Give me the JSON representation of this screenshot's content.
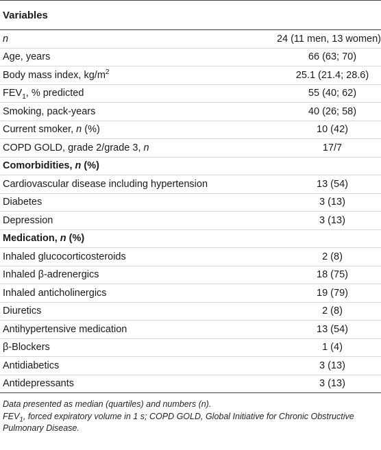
{
  "table": {
    "header": "Variables",
    "rows": [
      {
        "label": "n",
        "value": "24 (11 men, 13 women)",
        "italic_label": true
      },
      {
        "label": "Age, years",
        "value": "66 (63; 70)"
      },
      {
        "label": "Body mass index, kg/m",
        "label_sup": "2",
        "value": "25.1 (21.4; 28.6)"
      },
      {
        "label": "FEV",
        "label_sub": "1",
        "label_suffix": ", % predicted",
        "value": "55 (40; 62)"
      },
      {
        "label": "Smoking, pack-years",
        "value": "40 (26; 58)"
      },
      {
        "label": "Current smoker, ",
        "label_ital": "n",
        "label_suffix": " (%)",
        "value": "10 (42)"
      },
      {
        "label": "COPD GOLD, grade 2/grade 3, ",
        "label_ital": "n",
        "value": "17/7"
      },
      {
        "label": "Comorbidities, ",
        "label_ital": "n",
        "label_suffix": " (%)",
        "section": true,
        "value": ""
      },
      {
        "label": "Cardiovascular disease including hypertension",
        "value": "13 (54)"
      },
      {
        "label": "Diabetes",
        "value": "3 (13)"
      },
      {
        "label": "Depression",
        "value": "3 (13)"
      },
      {
        "label": "Medication, ",
        "label_ital": "n",
        "label_suffix": " (%)",
        "section": true,
        "value": ""
      },
      {
        "label": "Inhaled glucocorticosteroids",
        "value": "2 (8)"
      },
      {
        "label": "Inhaled β-adrenergics",
        "value": "18 (75)"
      },
      {
        "label": "Inhaled anticholinergics",
        "value": "19 (79)"
      },
      {
        "label": "Diuretics",
        "value": "2 (8)"
      },
      {
        "label": "Antihypertensive medication",
        "value": "13 (54)"
      },
      {
        "label": "β-Blockers",
        "value": "1 (4)"
      },
      {
        "label": "Antidiabetics",
        "value": "3 (13)"
      },
      {
        "label": "Antidepressants",
        "value": "3 (13)"
      }
    ]
  },
  "notes": {
    "line1": "Data presented as median (quartiles) and numbers (n).",
    "line2_pre": "FEV",
    "line2_sub": "1",
    "line2_post": ", forced expiratory volume in 1 s; COPD GOLD, Global Initiative for Chronic Obstructive Pulmonary Disease."
  }
}
